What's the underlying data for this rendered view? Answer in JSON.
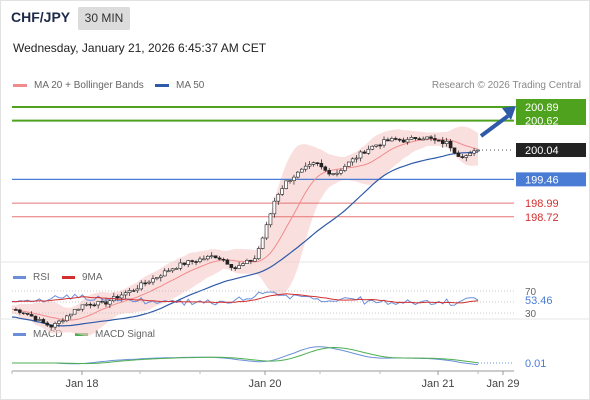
{
  "header": {
    "pair": "CHF/JPY",
    "timeframe": "30 MIN",
    "datetime": "Wednesday, January 21, 2026 6:45:37 AM CET"
  },
  "legend": {
    "bollinger_label": "MA 20 + Bollinger Bands",
    "ma50_label": "MA 50",
    "credit": "Research © 2026 Trading Central"
  },
  "rsi_legend": {
    "rsi": "RSI",
    "ma": "9MA"
  },
  "macd_legend": {
    "macd": "MACD",
    "signal": "MACD Signal"
  },
  "colors": {
    "bullish": "#3d9a2c",
    "target": "#4ea21d",
    "pivot": "#4a7cd6",
    "support": "#e57373",
    "ma20_band": "#f7c9c9",
    "ma20": "#f28b8b",
    "ma50": "#2e5aa8",
    "arrow": "#2e5aa8",
    "rsi": "#6a8fd8",
    "rsi_ma": "#d32f2f",
    "macd": "#6a8fd8",
    "macd_signal": "#4caf50"
  },
  "chart_data": [
    {
      "type": "candlestick",
      "title": "CHF/JPY",
      "x_tick_labels": [
        "Jan 18",
        "Jan 20",
        "Jan 21",
        "Jan 29"
      ],
      "ylim": [
        196.4,
        201.3
      ],
      "levels": [
        {
          "value": 200.89,
          "label": "200.89",
          "kind": "target"
        },
        {
          "value": 200.62,
          "label": "200.62",
          "kind": "target"
        },
        {
          "value": 200.04,
          "label": "200.04",
          "kind": "last_price"
        },
        {
          "value": 199.46,
          "label": "199.46",
          "kind": "pivot"
        },
        {
          "value": 198.99,
          "label": "198.99",
          "kind": "support"
        },
        {
          "value": 198.72,
          "label": "198.72",
          "kind": "support"
        }
      ],
      "close_path": [
        196.89,
        196.85,
        196.75,
        196.62,
        196.55,
        196.7,
        196.85,
        196.98,
        197.02,
        197.0,
        197.1,
        197.2,
        197.28,
        197.4,
        197.5,
        197.62,
        197.72,
        197.8,
        197.85,
        197.9,
        197.95,
        197.86,
        197.7,
        197.8,
        197.9,
        198.45,
        199.1,
        199.4,
        199.55,
        199.68,
        199.78,
        199.62,
        199.58,
        199.75,
        199.9,
        200.05,
        200.15,
        200.22,
        200.25,
        200.22,
        200.3,
        200.28,
        200.2,
        200.18,
        199.95,
        199.92,
        200.04
      ]
    },
    {
      "type": "line",
      "title": "RSI",
      "y_ticks": [
        70,
        30
      ],
      "last_value": 53.46,
      "ylim": [
        0,
        100
      ]
    },
    {
      "type": "line",
      "title": "MACD",
      "last_value": 0.01
    }
  ]
}
